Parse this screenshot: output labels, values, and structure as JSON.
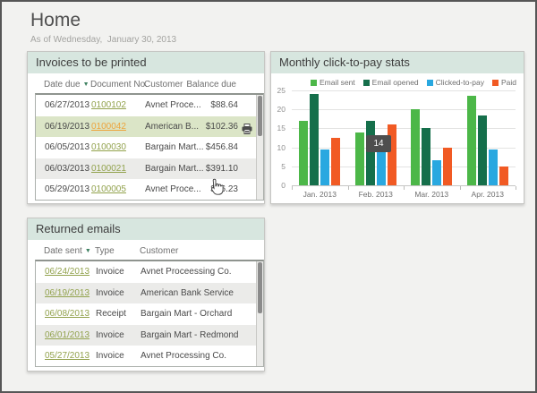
{
  "window": {
    "title": "Home",
    "subtitle": "As of Wednesday,  January 30, 2013"
  },
  "invoices_panel": {
    "title": "Invoices to be printed",
    "columns": [
      "Date due",
      "Document No.",
      "Customer",
      "Balance due"
    ],
    "sorted_column": "Date due",
    "rows": [
      {
        "date_due": "06/27/2013",
        "document_no": "0100102",
        "customer": "Avnet Proce...",
        "balance_due": "$88.64",
        "selected": false
      },
      {
        "date_due": "06/19/2013",
        "document_no": "0100042",
        "customer": "American B...",
        "balance_due": "$102.36",
        "selected": true
      },
      {
        "date_due": "06/05/2013",
        "document_no": "0100030",
        "customer": "Bargain Mart...",
        "balance_due": "$456.84",
        "selected": false
      },
      {
        "date_due": "06/03/2013",
        "document_no": "0100021",
        "customer": "Bargain Mart...",
        "balance_due": "$391.10",
        "selected": false
      },
      {
        "date_due": "05/29/2013",
        "document_no": "0100005",
        "customer": "Avnet Proce...",
        "balance_due": "$76.23",
        "selected": false
      }
    ]
  },
  "chart_panel": {
    "title": "Monthly click-to-pay stats",
    "tooltip_value": "14"
  },
  "chart_data": {
    "type": "bar",
    "title": "Monthly click-to-pay stats",
    "categories": [
      "Jan. 2013",
      "Feb. 2013",
      "Mar. 2013",
      "Apr. 2013"
    ],
    "series": [
      {
        "name": "Email sent",
        "color": "#4cb748",
        "values": [
          17,
          14,
          20,
          23.5
        ]
      },
      {
        "name": "Email opened",
        "color": "#156f4b",
        "values": [
          24,
          17,
          15,
          18.5
        ]
      },
      {
        "name": "Clicked-to-pay",
        "color": "#29a8e0",
        "values": [
          9.5,
          10,
          6.5,
          9.5
        ]
      },
      {
        "name": "Paid",
        "color": "#f15a24",
        "values": [
          12.5,
          16,
          10,
          5
        ]
      }
    ],
    "xlabel": "",
    "ylabel": "",
    "ylim": [
      0,
      25
    ],
    "yticks": [
      0,
      5,
      10,
      15,
      20,
      25
    ],
    "grid": true,
    "legend_position": "top-right",
    "hover_tooltip": {
      "category": "Feb. 2013",
      "value": "14"
    }
  },
  "returned_panel": {
    "title": "Returned emails",
    "columns": [
      "Date sent",
      "Type",
      "Customer"
    ],
    "sorted_column": "Date sent",
    "rows": [
      {
        "date_sent": "06/24/2013",
        "type": "Invoice",
        "customer": "Avnet Proceessing Co."
      },
      {
        "date_sent": "06/19/2013",
        "type": "Invoice",
        "customer": "American Bank Service"
      },
      {
        "date_sent": "06/08/2013",
        "type": "Receipt",
        "customer": "Bargain Mart - Orchard"
      },
      {
        "date_sent": "06/01/2013",
        "type": "Invoice",
        "customer": "Bargain Mart - Redmond"
      },
      {
        "date_sent": "05/27/2013",
        "type": "Invoice",
        "customer": "Avnet Processing Co."
      }
    ]
  },
  "colors": {
    "panel_header_bg": "#d7e6df",
    "selected_row_bg": "#dbe5c7",
    "link_green": "#92a24d",
    "link_active_orange": "#eda43c"
  }
}
